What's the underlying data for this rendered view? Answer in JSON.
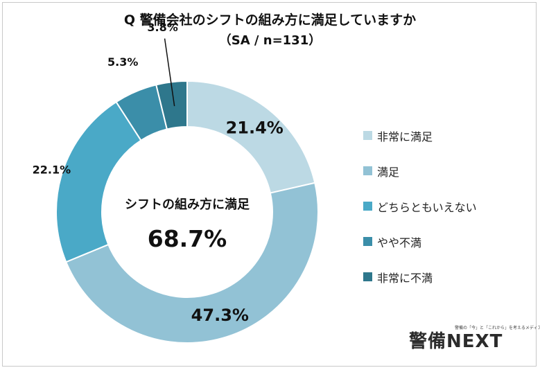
{
  "chart_data": {
    "type": "donut",
    "title": "Q 警備会社のシフトの組み方に満足していますか",
    "subtitle": "（SA / n=131）",
    "center_label": "シフトの組み方に満足",
    "center_value": "68.7%",
    "categories": [
      "非常に満足",
      "満足",
      "どちらともいえない",
      "やや不満",
      "非常に不満"
    ],
    "values": [
      21.4,
      47.3,
      22.1,
      5.3,
      3.8
    ],
    "value_labels": [
      "21.4%",
      "47.3%",
      "22.1%",
      "5.3%",
      "3.8%"
    ],
    "colors": [
      "#bcd9e4",
      "#92c2d5",
      "#4aa9c7",
      "#3b8ea9",
      "#2e778c"
    ],
    "legend_position": "right"
  },
  "logo": {
    "text": "警備NEXT",
    "tagline": "警備の「今」と「これから」を考えるメディア"
  }
}
